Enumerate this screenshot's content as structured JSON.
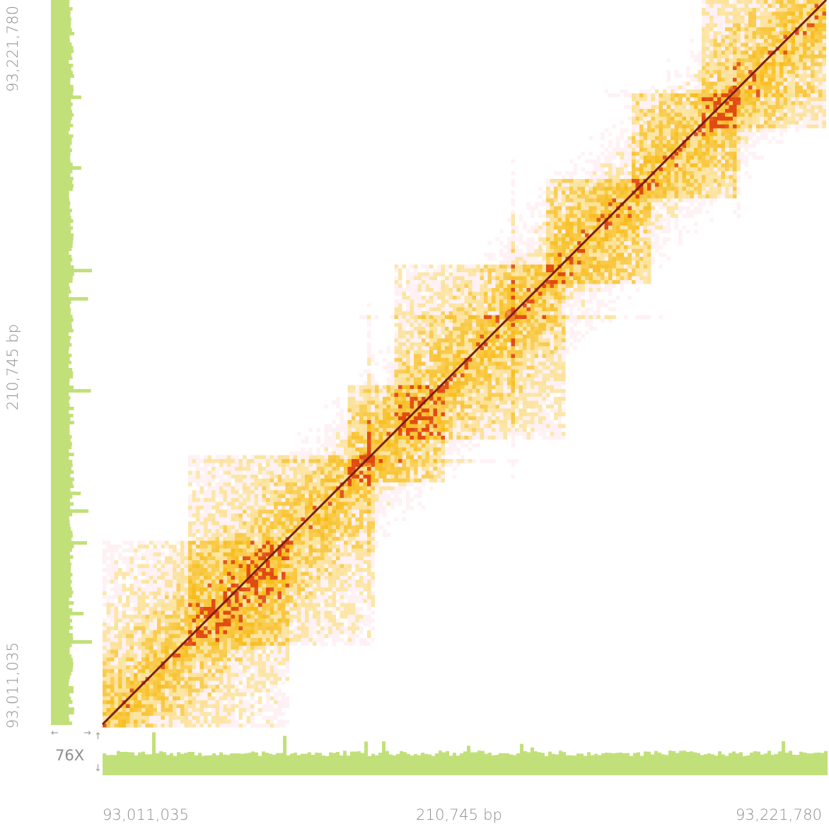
{
  "chart_data": {
    "type": "heatmap",
    "title": "",
    "region": {
      "start": 93011035,
      "end": 93221780,
      "length_label": "210,745 bp"
    },
    "x_axis": {
      "start_label": "93,011,035",
      "mid_label": "210,745 bp",
      "end_label": "93,221,780"
    },
    "y_axis": {
      "start_label": "93,011,035",
      "mid_label": "210,745 bp",
      "end_label": "93,221,780"
    },
    "coverage": {
      "label": "76X",
      "color": "#c2e07a"
    },
    "colors": {
      "low": "#ffe0e6",
      "mid": "#f7b500",
      "high": "#e24a10",
      "diagonal": "#7a1f14"
    },
    "domains": [
      {
        "start": 93011035,
        "end": 93065000,
        "strength": 0.7
      },
      {
        "start": 93035000,
        "end": 93090000,
        "strength": 0.75
      },
      {
        "start": 93082000,
        "end": 93110000,
        "strength": 0.85
      },
      {
        "start": 93095000,
        "end": 93145000,
        "strength": 0.8
      },
      {
        "start": 93140000,
        "end": 93170000,
        "strength": 0.95
      },
      {
        "start": 93165000,
        "end": 93195000,
        "strength": 0.85
      },
      {
        "start": 93185000,
        "end": 93221780,
        "strength": 0.8
      }
    ],
    "hotspots": [
      {
        "position": 93088000,
        "strength": 0.9
      },
      {
        "position": 93130000,
        "strength": 1.0
      },
      {
        "position": 93195000,
        "strength": 0.9
      }
    ]
  },
  "coverage_arrows": {
    "left": "←",
    "right": "→",
    "up": "↑",
    "down": "↓"
  }
}
